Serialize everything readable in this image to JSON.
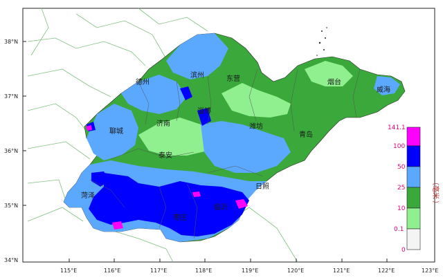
{
  "map": {
    "lat_labels": [
      "38°N",
      "37°N",
      "36°N",
      "35°N",
      "34°N"
    ],
    "lon_labels": [
      "115°E",
      "116°E",
      "117°E",
      "118°E",
      "119°E",
      "120°E",
      "121°E",
      "122°E",
      "123°E"
    ],
    "cities": [
      {
        "id": "dezhou",
        "name": "德州"
      },
      {
        "id": "binzhou",
        "name": "滨州"
      },
      {
        "id": "dongying",
        "name": "东营"
      },
      {
        "id": "yantai",
        "name": "烟台"
      },
      {
        "id": "weihai",
        "name": "威海"
      },
      {
        "id": "zibo",
        "name": "淄博"
      },
      {
        "id": "liaocheng",
        "name": "聊城"
      },
      {
        "id": "jinan",
        "name": "济南"
      },
      {
        "id": "weifang",
        "name": "潍坊"
      },
      {
        "id": "qingdao",
        "name": "青岛"
      },
      {
        "id": "taian",
        "name": "泰安"
      },
      {
        "id": "rizhao",
        "name": "日照"
      },
      {
        "id": "heze",
        "name": "菏泽"
      },
      {
        "id": "linyi",
        "name": "临沂"
      },
      {
        "id": "zaozhuang",
        "name": "枣庄"
      }
    ]
  },
  "legend": {
    "max_label": "141.1",
    "breaks": [
      "100",
      "50",
      "25",
      "10",
      "0.1",
      "0"
    ],
    "unit": "毫米",
    "unit_brackets": [
      "（",
      "）"
    ],
    "colors": [
      "#ff00ff",
      "#0000ff",
      "#5ba8ff",
      "#3aa83a",
      "#90f090",
      "#f4f4f4"
    ]
  },
  "colors": {
    "land_outside": "#ffffff",
    "sea": "#ffffff",
    "border_line": "#7fbf7f",
    "frame": "#222222"
  }
}
